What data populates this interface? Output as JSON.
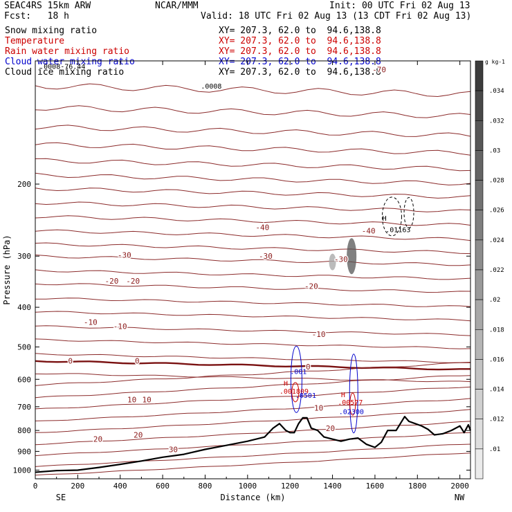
{
  "header": {
    "model": "SEAC4RS 15km ARW",
    "forecast": "Fcst:   18 h",
    "org": "NCAR/MMM",
    "init": "Init: 00 UTC Fri 02 Aug 13",
    "valid": "Valid: 18 UTC Fri 02 Aug 13 (13 CDT Fri 02 Aug 13)"
  },
  "fields": [
    {
      "label": "Snow mixing ratio",
      "color": "#000000",
      "xy": "XY= 207.3, 62.0 to  94.6,138.8",
      "xy_color": "#000000"
    },
    {
      "label": "Temperature",
      "color": "#cc0000",
      "xy": "XY= 207.3, 62.0 to  94.6,138.8",
      "xy_color": "#cc0000"
    },
    {
      "label": "Rain water mixing ratio",
      "color": "#cc0000",
      "xy": "XY= 207.3, 62.0 to  94.6,138.8",
      "xy_color": "#cc0000"
    },
    {
      "label": "Cloud water mixing ratio",
      "color": "#0000cc",
      "xy": "XY= 207.3, 62.0 to  94.6,138.8",
      "xy_color": "#0000cc"
    },
    {
      "label": "Cloud ice mixing ratio",
      "color": "#000000",
      "xy": "XY= 207.3, 62.0 to  94.6,138.8",
      "xy_color": "#000000"
    }
  ],
  "chart_data": {
    "type": "line",
    "xlabel": "Distance (km)",
    "ylabel": "Pressure (hPa)",
    "xlim": [
      0,
      2050
    ],
    "ylim": [
      1050,
      100
    ],
    "y_scale": "log",
    "x_ticks": [
      0,
      200,
      400,
      600,
      800,
      1000,
      1200,
      1400,
      1600,
      1800,
      2000
    ],
    "y_ticks": [
      200,
      300,
      400,
      500,
      600,
      700,
      800,
      900,
      1000
    ],
    "x_end_labels": {
      "left": "SE",
      "right": "NW"
    },
    "colorbar": {
      "unit": "g kg-1",
      "ticks": [
        ".034",
        ".032",
        ".03",
        ".028",
        ".026",
        ".024",
        ".022",
        ".02",
        ".018",
        ".016",
        ".014",
        ".012",
        ".01"
      ]
    },
    "temperature_labels": [
      {
        "text": "-70",
        "x": 1620,
        "p": 105
      },
      {
        "text": "-40",
        "x": 1070,
        "p": 255
      },
      {
        "text": "-40",
        "x": 1570,
        "p": 260
      },
      {
        "text": "-30",
        "x": 420,
        "p": 298
      },
      {
        "text": "-30",
        "x": 1085,
        "p": 300
      },
      {
        "text": "-30",
        "x": 1440,
        "p": 305
      },
      {
        "text": "-20",
        "x": 360,
        "p": 345
      },
      {
        "text": "-20",
        "x": 460,
        "p": 345
      },
      {
        "text": "-20",
        "x": 1300,
        "p": 355
      },
      {
        "text": "-10",
        "x": 260,
        "p": 435
      },
      {
        "text": "-10",
        "x": 400,
        "p": 445
      },
      {
        "text": "-10",
        "x": 1335,
        "p": 465
      },
      {
        "text": "0",
        "x": 165,
        "p": 541
      },
      {
        "text": "0",
        "x": 480,
        "p": 541
      },
      {
        "text": "0",
        "x": 1285,
        "p": 559
      },
      {
        "text": "10",
        "x": 455,
        "p": 672
      },
      {
        "text": "10",
        "x": 525,
        "p": 672
      },
      {
        "text": "10",
        "x": 1335,
        "p": 705
      },
      {
        "text": "20",
        "x": 295,
        "p": 840
      },
      {
        "text": "20",
        "x": 485,
        "p": 820
      },
      {
        "text": "20",
        "x": 1390,
        "p": 790
      },
      {
        "text": "30",
        "x": 650,
        "p": 890
      }
    ],
    "mixing_labels": [
      {
        "text": ".0008",
        "x": 780,
        "p": 115,
        "color": "#000000"
      },
      {
        "text": ".0008-76.44",
        "x": 20,
        "p": 103,
        "color": "#000000"
      },
      {
        "text": "H",
        "x": 1635,
        "p": 242,
        "color": "#000000"
      },
      {
        "text": ".01163",
        "x": 1650,
        "p": 258,
        "color": "#000000"
      },
      {
        "text": ".001",
        "x": 1200,
        "p": 573,
        "color": "#0000cc"
      },
      {
        "text": "H",
        "x": 1170,
        "p": 612,
        "color": "#cc0000"
      },
      {
        "text": ".001809",
        "x": 1150,
        "p": 640,
        "color": "#cc0000"
      },
      {
        "text": ".0501",
        "x": 1225,
        "p": 656,
        "color": "#0000cc"
      },
      {
        "text": "H",
        "x": 1440,
        "p": 653,
        "color": "#cc0000"
      },
      {
        "text": ".00577",
        "x": 1425,
        "p": 681,
        "color": "#cc0000"
      },
      {
        "text": ".02300",
        "x": 1430,
        "p": 718,
        "color": "#0000cc"
      }
    ],
    "terrain": {
      "x": [
        0,
        100,
        200,
        300,
        400,
        500,
        600,
        700,
        800,
        900,
        1000,
        1080,
        1120,
        1150,
        1180,
        1200,
        1220,
        1240,
        1260,
        1280,
        1300,
        1330,
        1360,
        1400,
        1440,
        1480,
        1520,
        1560,
        1600,
        1630,
        1660,
        1700,
        1740,
        1760,
        1790,
        1820,
        1850,
        1880,
        1920,
        1960,
        2000,
        2020,
        2040,
        2050
      ],
      "p": [
        1012,
        1003,
        1000,
        985,
        968,
        950,
        930,
        915,
        890,
        870,
        850,
        830,
        790,
        770,
        800,
        810,
        810,
        770,
        745,
        745,
        790,
        800,
        830,
        840,
        850,
        840,
        835,
        865,
        880,
        855,
        800,
        800,
        740,
        760,
        770,
        780,
        795,
        820,
        815,
        800,
        780,
        810,
        775,
        800
      ]
    }
  }
}
